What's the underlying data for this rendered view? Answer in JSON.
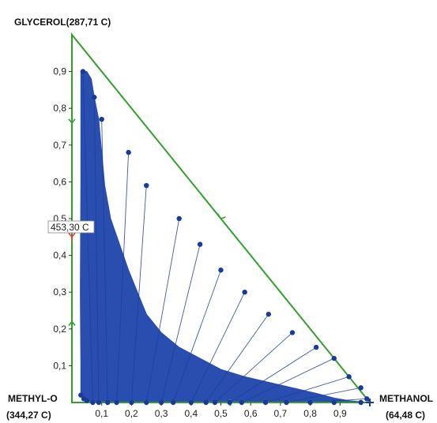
{
  "vertices": {
    "top": {
      "label": "GLYCEROL(287,71 C)"
    },
    "left": {
      "line1": "METHYL-O",
      "line2": "(344,27 C)"
    },
    "right": {
      "line1": "METHANOL",
      "line2": "(64,48 C)"
    }
  },
  "annotation": "453,30 C",
  "axes": {
    "y_ticks": [
      "0,1",
      "0,2",
      "0,3",
      "0,4",
      "0,5",
      "0,6",
      "0,7",
      "0,8",
      "0,9"
    ],
    "x_ticks": [
      "0,1",
      "0,2",
      "0,3",
      "0,4",
      "0,5",
      "0,6",
      "0,7",
      "0,8",
      "0,9"
    ]
  },
  "colors": {
    "region_fill": "#2a4db0",
    "tie_line": "#1f3f9c",
    "point": "#1a3a9a",
    "border": "#33a02c",
    "singular_point": "#e04040"
  },
  "chart_data": {
    "type": "scatter",
    "xlim": [
      0,
      1
    ],
    "ylim": [
      0,
      1
    ],
    "phase_envelope_x": [
      0.03,
      0.037,
      0.05,
      0.065,
      0.075,
      0.09,
      0.1,
      0.11,
      0.13,
      0.16,
      0.19,
      0.22,
      0.25,
      0.3,
      0.36,
      0.43,
      0.5,
      0.58,
      0.66,
      0.74,
      0.82,
      0.88,
      0.93,
      0.97,
      0.99,
      0.99,
      0.9,
      0.8,
      0.7,
      0.55,
      0.35,
      0.2,
      0.1,
      0.04,
      0.03,
      0.03,
      0.028,
      0.03,
      0.03
    ],
    "phase_envelope_y": [
      0.9,
      0.9,
      0.9,
      0.88,
      0.83,
      0.77,
      0.68,
      0.59,
      0.5,
      0.43,
      0.36,
      0.3,
      0.24,
      0.19,
      0.15,
      0.12,
      0.09,
      0.07,
      0.055,
      0.04,
      0.025,
      0.012,
      0.005,
      0.002,
      0.0,
      0.0,
      0.0,
      0.0,
      0.0,
      0.0,
      0.0,
      0.0,
      0.0,
      0.005,
      0.02,
      0.1,
      0.3,
      0.6,
      0.9
    ],
    "upper_points_x": [
      0.037,
      0.075,
      0.1,
      0.19,
      0.25,
      0.36,
      0.43,
      0.5,
      0.58,
      0.66,
      0.74,
      0.82,
      0.88,
      0.93,
      0.97,
      0.99
    ],
    "upper_points_y": [
      0.9,
      0.83,
      0.77,
      0.68,
      0.59,
      0.5,
      0.43,
      0.36,
      0.3,
      0.24,
      0.19,
      0.15,
      0.12,
      0.07,
      0.04,
      0.01
    ],
    "lower_points_x": [
      0.07,
      0.09,
      0.12,
      0.15,
      0.2,
      0.25,
      0.3,
      0.34,
      0.4,
      0.45,
      0.48,
      0.53,
      0.57,
      0.65,
      0.72,
      0.8,
      0.88,
      0.97
    ],
    "lower_points_y": [
      0.0,
      0.0,
      0.0,
      0.0,
      0.0,
      0.0,
      0.0,
      0.0,
      0.0,
      0.0,
      0.0,
      0.0,
      0.0,
      0.0,
      0.0,
      0.0,
      0.0,
      0.0
    ],
    "extra_points_x": [
      0.03,
      0.04,
      0.05
    ],
    "extra_points_y": [
      0.02,
      0.01,
      0.005
    ],
    "singular_point": {
      "x": 0,
      "y": 0.45
    }
  }
}
